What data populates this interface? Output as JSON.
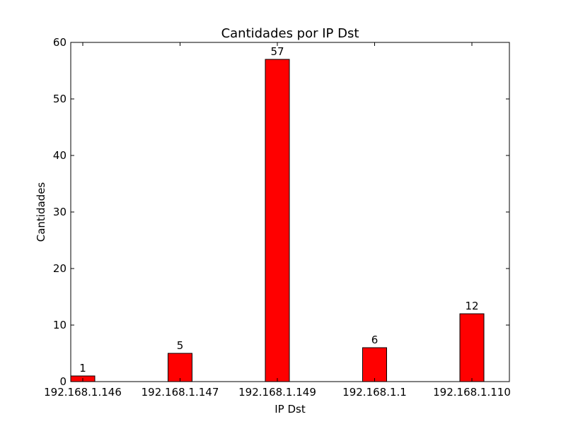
{
  "chart_data": {
    "type": "bar",
    "title": "Cantidades por IP Dst",
    "xlabel": "IP Dst",
    "ylabel": "Cantidades",
    "categories": [
      "192.168.1.146",
      "192.168.1.147",
      "192.168.1.149",
      "192.168.1.1",
      "192.168.1.110"
    ],
    "values": [
      1,
      5,
      57,
      6,
      12
    ],
    "data_labels": [
      "1",
      "5",
      "57",
      "6",
      "12"
    ],
    "ylim": [
      0,
      60
    ],
    "yticks": [
      0,
      10,
      20,
      30,
      40,
      50,
      60
    ],
    "ytick_labels": [
      "0",
      "10",
      "20",
      "30",
      "40",
      "50",
      "60"
    ],
    "grid": false,
    "legend": "none",
    "colors": {
      "bar": "#ff0000",
      "edge": "#000000",
      "background": "#ffffff"
    }
  }
}
